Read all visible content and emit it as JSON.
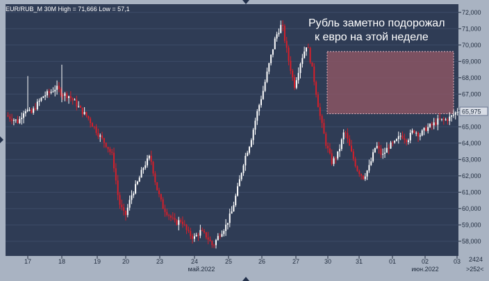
{
  "header": {
    "text": "EUR/RUB_M 30M High = 71,666 Low = 57,1"
  },
  "annotation": {
    "line1": "Рубль заметно подорожал",
    "line2": "к евро на этой неделе"
  },
  "last_price_label": "65,975",
  "corner": {
    "top": "2424",
    "bottom": ">252<"
  },
  "colors": {
    "background": "#2f3c55",
    "up_candle": "#ffffff",
    "down_candle": "#d71f2a",
    "highlight_fill": "#8a5564",
    "highlight_border": "#e8b8c4",
    "axis_panel": "#a9b3c2"
  },
  "chart_data": {
    "type": "candlestick",
    "title": "",
    "xlabel": "",
    "ylabel": "",
    "ylim": [
      57.1,
      72.5
    ],
    "y_ticks": [
      "72,000",
      "71,000",
      "70,000",
      "69,000",
      "68,000",
      "67,000",
      "66,000",
      "65,000",
      "64,000",
      "63,000",
      "62,000",
      "61,000",
      "60,000",
      "59,000",
      "58,000"
    ],
    "x_ticks": [
      "17",
      "18",
      "19",
      "20",
      "23",
      "24",
      "25",
      "26",
      "27",
      "30",
      "31",
      "01",
      "02",
      "03"
    ],
    "x_sublabels": [
      "май.2022",
      "июн.2022"
    ],
    "summary_high": 71.666,
    "summary_low": 57.1,
    "last_value": 65.975,
    "close_path": [
      [
        0,
        65.7
      ],
      [
        2,
        65.3
      ],
      [
        3,
        66.1
      ],
      [
        4,
        65.8
      ],
      [
        5,
        66.4
      ],
      [
        6,
        66.9
      ],
      [
        7,
        67.1
      ],
      [
        8,
        67.4
      ],
      [
        9,
        67.0
      ],
      [
        10,
        66.9
      ],
      [
        11,
        66.5
      ],
      [
        12,
        66.0
      ],
      [
        13,
        65.6
      ],
      [
        14,
        65.0
      ],
      [
        15,
        64.4
      ],
      [
        16,
        63.9
      ],
      [
        17,
        63.2
      ],
      [
        18,
        60.4
      ],
      [
        19,
        59.5
      ],
      [
        20,
        60.8
      ],
      [
        21,
        61.6
      ],
      [
        22,
        62.6
      ],
      [
        23,
        63.2
      ],
      [
        24,
        61.3
      ],
      [
        25,
        60.1
      ],
      [
        26,
        59.6
      ],
      [
        27,
        59.1
      ],
      [
        28,
        59.3
      ],
      [
        29,
        58.5
      ],
      [
        30,
        58.2
      ],
      [
        31,
        58.6
      ],
      [
        32,
        58.3
      ],
      [
        33,
        57.7
      ],
      [
        34,
        58.4
      ],
      [
        35,
        58.9
      ],
      [
        36,
        59.8
      ],
      [
        37,
        61.3
      ],
      [
        38,
        63.0
      ],
      [
        39,
        64.1
      ],
      [
        40,
        65.8
      ],
      [
        41,
        67.2
      ],
      [
        42,
        68.9
      ],
      [
        43,
        70.5
      ],
      [
        44,
        71.3
      ],
      [
        45,
        69.2
      ],
      [
        46,
        67.5
      ],
      [
        47,
        69.0
      ],
      [
        48,
        70.1
      ],
      [
        49,
        68.2
      ],
      [
        50,
        65.8
      ],
      [
        51,
        64.0
      ],
      [
        52,
        62.8
      ],
      [
        53,
        63.4
      ],
      [
        54,
        64.8
      ],
      [
        55,
        63.5
      ],
      [
        56,
        62.4
      ],
      [
        57,
        61.9
      ],
      [
        58,
        62.6
      ],
      [
        59,
        63.9
      ],
      [
        60,
        63.2
      ],
      [
        61,
        63.8
      ],
      [
        62,
        64.0
      ],
      [
        63,
        64.5
      ],
      [
        64,
        64.2
      ],
      [
        65,
        64.8
      ],
      [
        66,
        64.5
      ],
      [
        67,
        64.9
      ],
      [
        68,
        65.1
      ],
      [
        69,
        65.4
      ],
      [
        70,
        65.4
      ],
      [
        71,
        65.6
      ],
      [
        72,
        65.975
      ]
    ],
    "highlight_range": {
      "y_from": 65.8,
      "y_to": 69.6
    }
  }
}
